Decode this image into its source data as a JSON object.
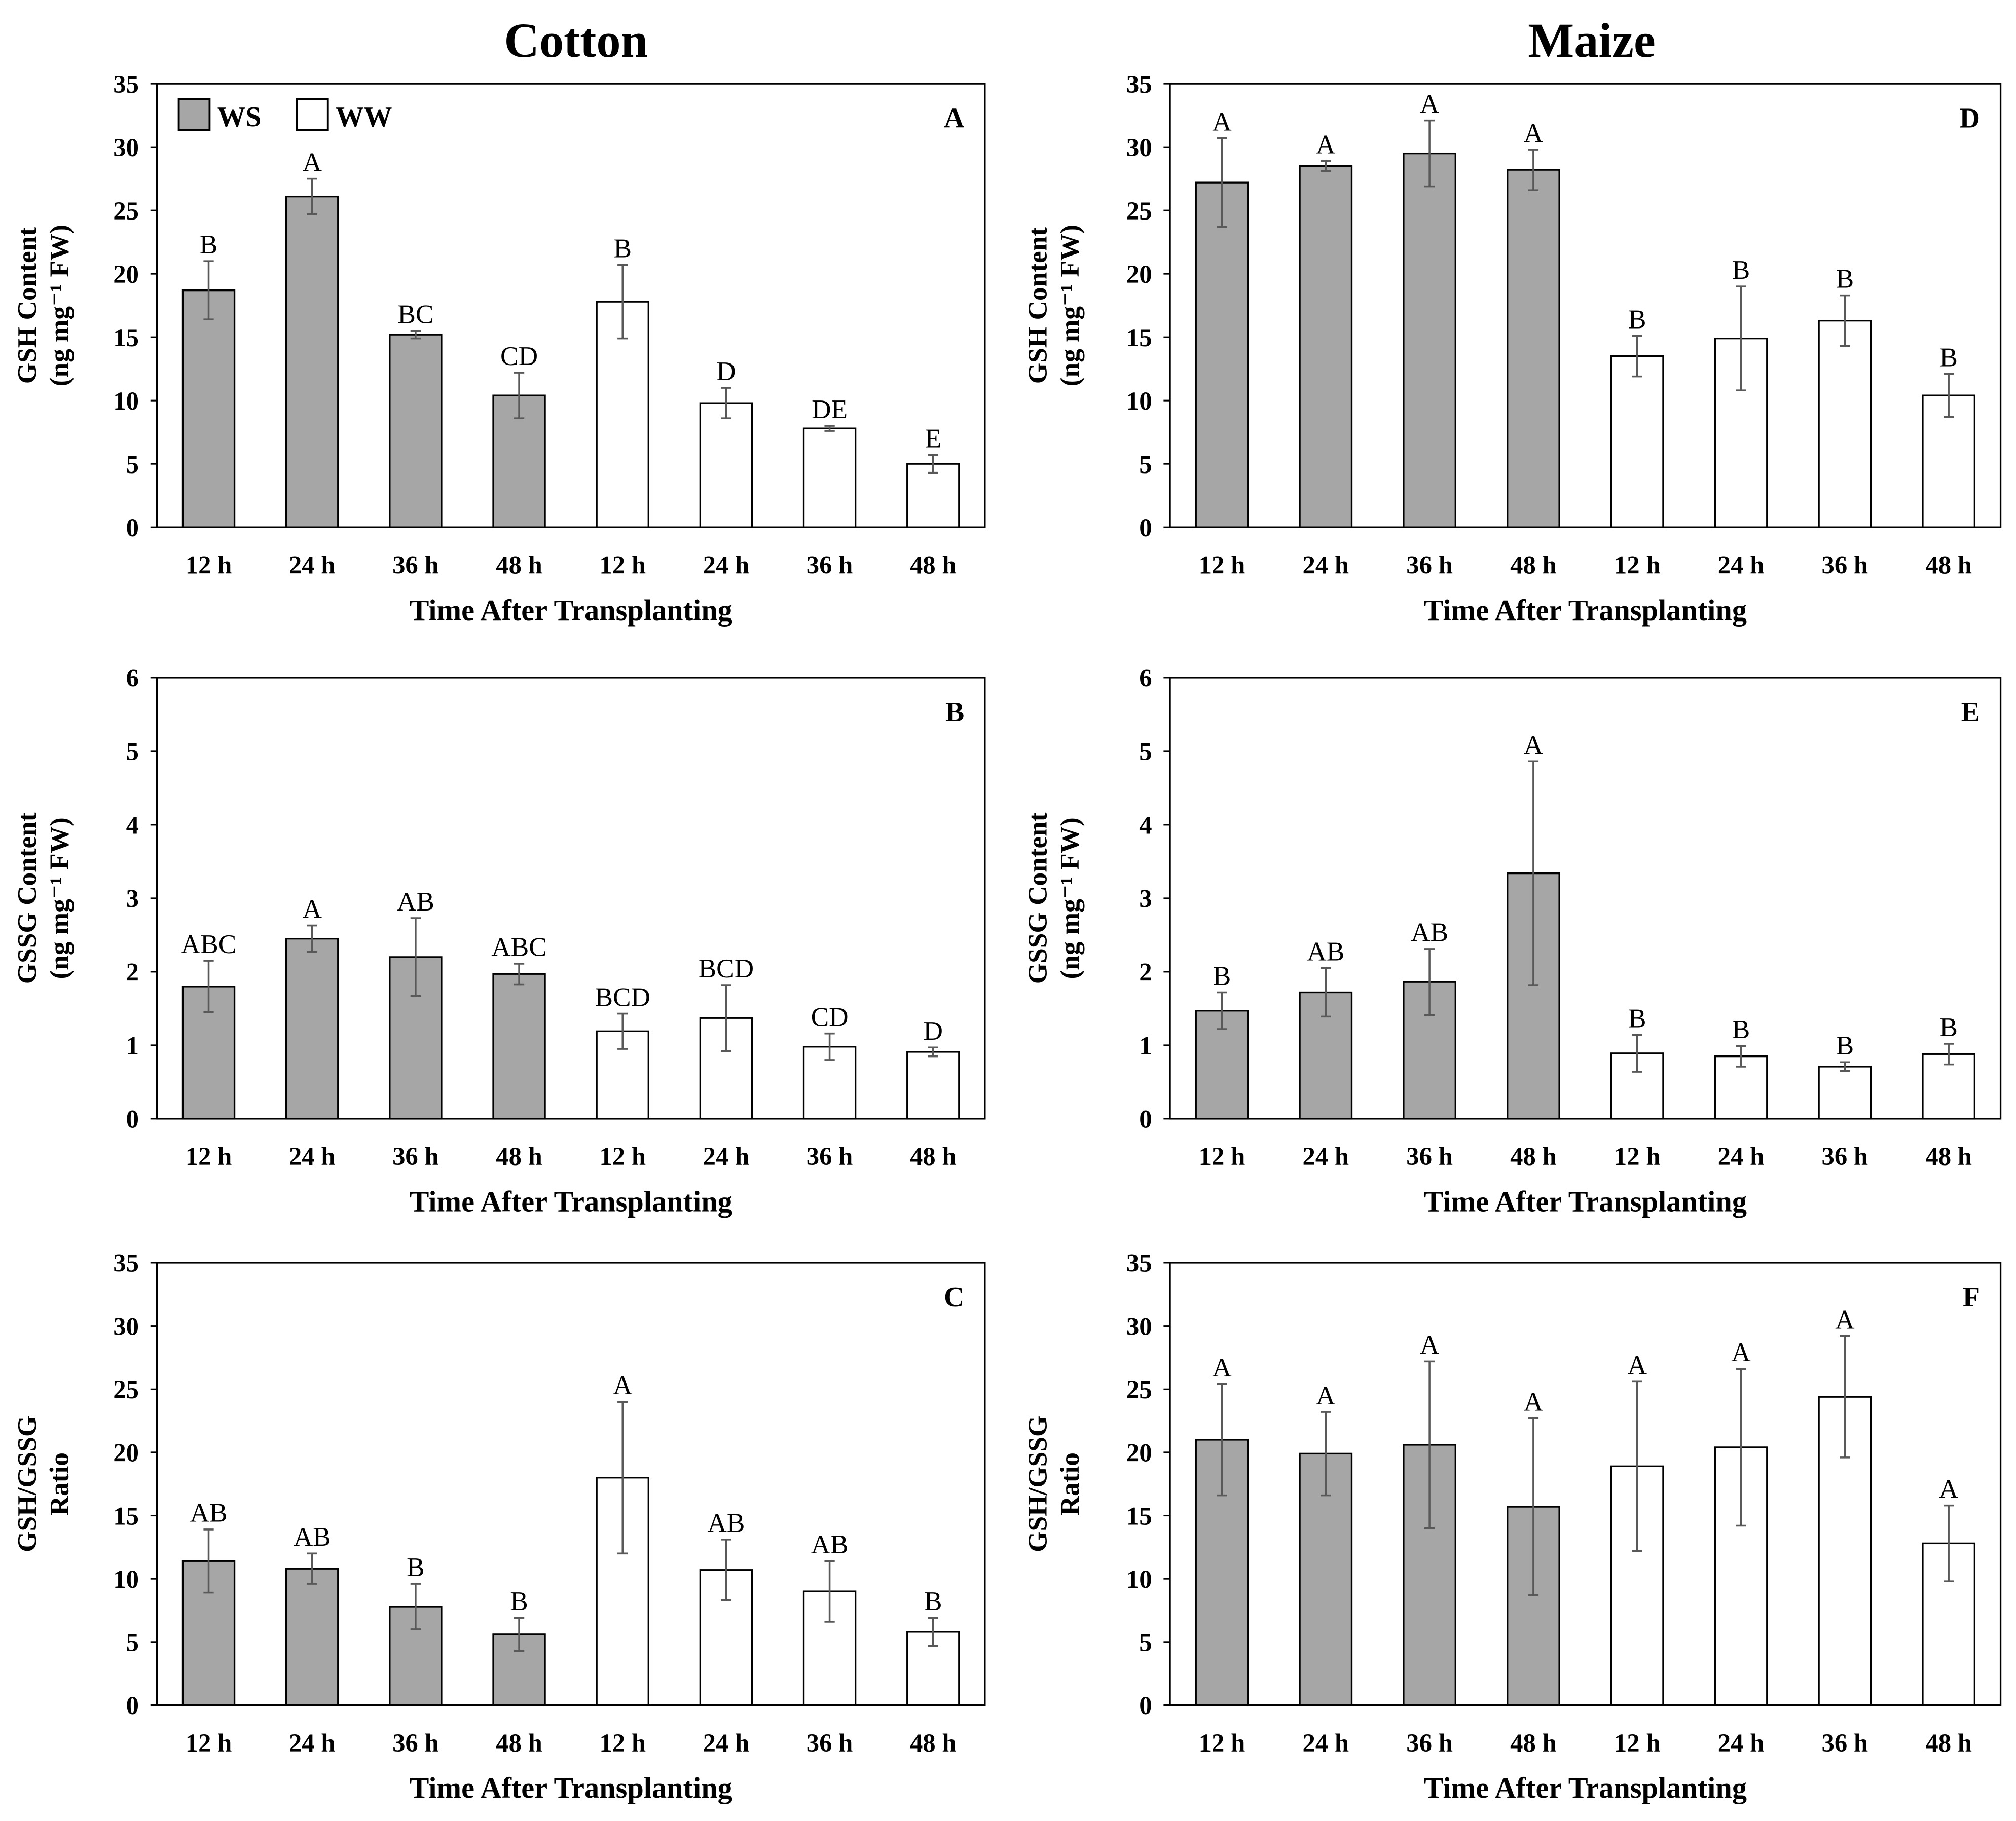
{
  "column_titles": [
    "Cotton",
    "Maize"
  ],
  "legend": [
    {
      "label": "WS",
      "color": "#a6a6a6"
    },
    {
      "label": "WW",
      "color": "#ffffff"
    }
  ],
  "colors": {
    "ws": "#a6a6a6",
    "ww": "#ffffff",
    "error_bar": "#595959",
    "axis": "#000000"
  },
  "chart_data": [
    {
      "type": "bar",
      "panel": "A",
      "crop": "Cotton",
      "ylabel": [
        "GSH Content",
        "(ng mg⁻¹ FW)"
      ],
      "xlabel": "Time After Transplanting",
      "categories": [
        "12 h",
        "24 h",
        "36 h",
        "48 h",
        "12 h",
        "24 h",
        "36 h",
        "48 h"
      ],
      "treatment": [
        "WS",
        "WS",
        "WS",
        "WS",
        "WW",
        "WW",
        "WW",
        "WW"
      ],
      "values": [
        18.7,
        26.1,
        15.2,
        10.4,
        17.8,
        9.8,
        7.8,
        5.0
      ],
      "errors": [
        2.3,
        1.4,
        0.3,
        1.8,
        2.9,
        1.2,
        0.2,
        0.7
      ],
      "letters": [
        "B",
        "A",
        "BC",
        "CD",
        "B",
        "D",
        "DE",
        "E"
      ],
      "ylim": [
        0,
        35
      ],
      "yticks": [
        "0",
        "5",
        "10",
        "15",
        "20",
        "25",
        "30",
        "35"
      ],
      "legend_position": "top-left"
    },
    {
      "type": "bar",
      "panel": "B",
      "crop": "Cotton",
      "ylabel": [
        "GSSG Content",
        "(ng mg⁻¹ FW)"
      ],
      "xlabel": "Time After Transplanting",
      "categories": [
        "12 h",
        "24 h",
        "36 h",
        "48 h",
        "12 h",
        "24 h",
        "36 h",
        "48 h"
      ],
      "treatment": [
        "WS",
        "WS",
        "WS",
        "WS",
        "WW",
        "WW",
        "WW",
        "WW"
      ],
      "values": [
        1.8,
        2.45,
        2.2,
        1.97,
        1.19,
        1.37,
        0.98,
        0.91
      ],
      "errors": [
        0.35,
        0.18,
        0.53,
        0.14,
        0.24,
        0.45,
        0.18,
        0.06
      ],
      "letters": [
        "ABC",
        "A",
        "AB",
        "ABC",
        "BCD",
        "BCD",
        "CD",
        "D"
      ],
      "ylim": [
        0,
        6
      ],
      "yticks": [
        "0",
        "1",
        "2",
        "3",
        "4",
        "5",
        "6"
      ]
    },
    {
      "type": "bar",
      "panel": "C",
      "crop": "Cotton",
      "ylabel": [
        "GSH/GSSG",
        "Ratio"
      ],
      "xlabel": "Time After Transplanting",
      "categories": [
        "12 h",
        "24 h",
        "36 h",
        "48 h",
        "12 h",
        "24 h",
        "36 h",
        "48 h"
      ],
      "treatment": [
        "WS",
        "WS",
        "WS",
        "WS",
        "WW",
        "WW",
        "WW",
        "WW"
      ],
      "values": [
        11.4,
        10.8,
        7.8,
        5.6,
        18.0,
        10.7,
        9.0,
        5.8
      ],
      "errors": [
        2.5,
        1.2,
        1.8,
        1.3,
        6.0,
        2.4,
        2.4,
        1.1
      ],
      "letters": [
        "AB",
        "AB",
        "B",
        "B",
        "A",
        "AB",
        "AB",
        "B"
      ],
      "ylim": [
        0,
        35
      ],
      "yticks": [
        "0",
        "5",
        "10",
        "15",
        "20",
        "25",
        "30",
        "35"
      ]
    },
    {
      "type": "bar",
      "panel": "D",
      "crop": "Maize",
      "ylabel": [
        "GSH Content",
        "(ng mg⁻¹ FW)"
      ],
      "xlabel": "Time After Transplanting",
      "categories": [
        "12 h",
        "24 h",
        "36 h",
        "48 h",
        "12 h",
        "24 h",
        "36 h",
        "48 h"
      ],
      "treatment": [
        "WS",
        "WS",
        "WS",
        "WS",
        "WW",
        "WW",
        "WW",
        "WW"
      ],
      "values": [
        27.2,
        28.5,
        29.5,
        28.2,
        13.5,
        14.9,
        16.3,
        10.4
      ],
      "errors": [
        3.5,
        0.4,
        2.6,
        1.6,
        1.6,
        4.1,
        2.0,
        1.7
      ],
      "letters": [
        "A",
        "A",
        "A",
        "A",
        "B",
        "B",
        "B",
        "B"
      ],
      "ylim": [
        0,
        35
      ],
      "yticks": [
        "0",
        "5",
        "10",
        "15",
        "20",
        "25",
        "30",
        "35"
      ]
    },
    {
      "type": "bar",
      "panel": "E",
      "crop": "Maize",
      "ylabel": [
        "GSSG Content",
        "(ng mg⁻¹ FW)"
      ],
      "xlabel": "Time After Transplanting",
      "categories": [
        "12 h",
        "24 h",
        "36 h",
        "48 h",
        "12 h",
        "24 h",
        "36 h",
        "48 h"
      ],
      "treatment": [
        "WS",
        "WS",
        "WS",
        "WS",
        "WW",
        "WW",
        "WW",
        "WW"
      ],
      "values": [
        1.47,
        1.72,
        1.86,
        3.34,
        0.89,
        0.85,
        0.71,
        0.88
      ],
      "errors": [
        0.25,
        0.33,
        0.45,
        1.52,
        0.25,
        0.14,
        0.06,
        0.14
      ],
      "letters": [
        "B",
        "AB",
        "AB",
        "A",
        "B",
        "B",
        "B",
        "B"
      ],
      "ylim": [
        0,
        6
      ],
      "yticks": [
        "0",
        "1",
        "2",
        "3",
        "4",
        "5",
        "6"
      ]
    },
    {
      "type": "bar",
      "panel": "F",
      "crop": "Maize",
      "ylabel": [
        "GSH/GSSG",
        "Ratio"
      ],
      "xlabel": "Time After Transplanting",
      "categories": [
        "12 h",
        "24 h",
        "36 h",
        "48 h",
        "12 h",
        "24 h",
        "36 h",
        "48 h"
      ],
      "treatment": [
        "WS",
        "WS",
        "WS",
        "WS",
        "WW",
        "WW",
        "WW",
        "WW"
      ],
      "values": [
        21.0,
        19.9,
        20.6,
        15.7,
        18.9,
        20.4,
        24.4,
        12.8
      ],
      "errors": [
        4.4,
        3.3,
        6.6,
        7.0,
        6.7,
        6.2,
        4.8,
        3.0
      ],
      "letters": [
        "A",
        "A",
        "A",
        "A",
        "A",
        "A",
        "A",
        "A"
      ],
      "ylim": [
        0,
        35
      ],
      "yticks": [
        "0",
        "5",
        "10",
        "15",
        "20",
        "25",
        "30",
        "35"
      ]
    }
  ]
}
